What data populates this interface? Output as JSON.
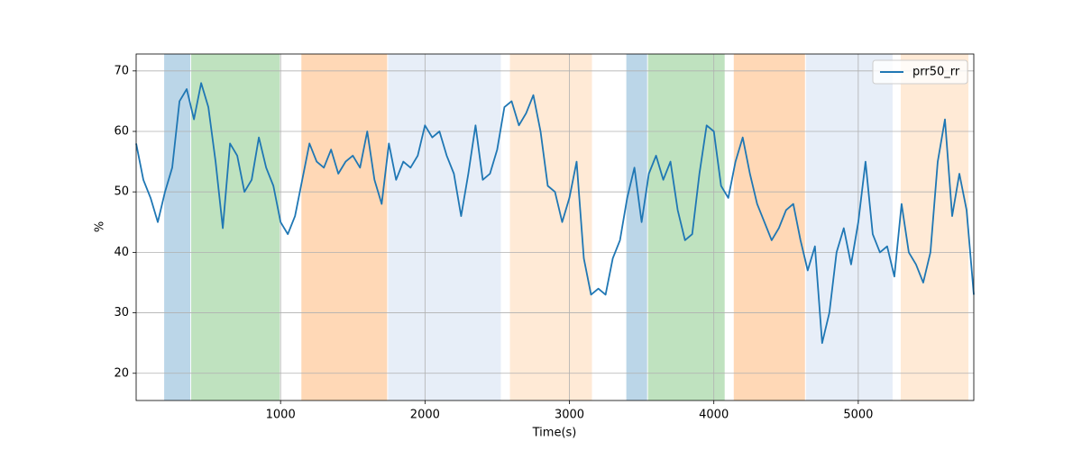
{
  "chart_data": {
    "type": "line",
    "xlabel": "Time(s)",
    "ylabel": "%",
    "x": [
      0,
      50,
      100,
      150,
      200,
      250,
      300,
      350,
      400,
      450,
      500,
      550,
      600,
      650,
      700,
      750,
      800,
      850,
      900,
      950,
      1000,
      1050,
      1100,
      1150,
      1200,
      1250,
      1300,
      1350,
      1400,
      1450,
      1500,
      1550,
      1600,
      1650,
      1700,
      1750,
      1800,
      1850,
      1900,
      1950,
      2000,
      2050,
      2100,
      2150,
      2200,
      2250,
      2300,
      2350,
      2400,
      2450,
      2500,
      2550,
      2600,
      2650,
      2700,
      2750,
      2800,
      2850,
      2900,
      2950,
      3000,
      3050,
      3100,
      3150,
      3200,
      3250,
      3300,
      3350,
      3400,
      3450,
      3500,
      3550,
      3600,
      3650,
      3700,
      3750,
      3800,
      3850,
      3900,
      3950,
      4000,
      4050,
      4100,
      4150,
      4200,
      4250,
      4300,
      4350,
      4400,
      4450,
      4500,
      4550,
      4600,
      4650,
      4700,
      4750,
      4800,
      4850,
      4900,
      4950,
      5000,
      5050,
      5100,
      5150,
      5200,
      5250,
      5300,
      5350,
      5400,
      5450,
      5500,
      5550,
      5600,
      5650,
      5700,
      5750,
      5800
    ],
    "series": [
      {
        "name": "prr50_rr",
        "color": "#1f77b4",
        "values": [
          58,
          52,
          49,
          45,
          50,
          54,
          65,
          67,
          62,
          68,
          64,
          55,
          44,
          58,
          56,
          50,
          52,
          59,
          54,
          51,
          45,
          43,
          46,
          52,
          58,
          55,
          54,
          57,
          53,
          55,
          56,
          54,
          60,
          52,
          48,
          58,
          52,
          55,
          54,
          56,
          61,
          59,
          60,
          56,
          53,
          46,
          53,
          61,
          52,
          53,
          57,
          64,
          65,
          61,
          63,
          66,
          60,
          51,
          50,
          45,
          49,
          55,
          39,
          33,
          34,
          33,
          39,
          42,
          49,
          54,
          45,
          53,
          56,
          52,
          55,
          47,
          42,
          43,
          53,
          61,
          60,
          51,
          49,
          55,
          59,
          53,
          48,
          45,
          42,
          44,
          47,
          48,
          42,
          37,
          41,
          25,
          30,
          40,
          44,
          38,
          45,
          55,
          43,
          40,
          41,
          36,
          48,
          40,
          38,
          35,
          40,
          55,
          62,
          46,
          53,
          47,
          33
        ]
      }
    ],
    "spans": [
      {
        "x0": 194,
        "x1": 375,
        "color": "#1f77b4"
      },
      {
        "x0": 381,
        "x1": 994,
        "color": "#2ca02c"
      },
      {
        "x0": 1144,
        "x1": 1738,
        "color": "#ff7f0e"
      },
      {
        "x0": 1744,
        "x1": 2525,
        "color": "#aec7e8"
      },
      {
        "x0": 2588,
        "x1": 3156,
        "color": "#ffbb78"
      },
      {
        "x0": 3394,
        "x1": 3538,
        "color": "#1f77b4"
      },
      {
        "x0": 3544,
        "x1": 4075,
        "color": "#2ca02c"
      },
      {
        "x0": 4138,
        "x1": 4631,
        "color": "#ff7f0e"
      },
      {
        "x0": 4638,
        "x1": 5238,
        "color": "#aec7e8"
      },
      {
        "x0": 5294,
        "x1": 5763,
        "color": "#ffbb78"
      }
    ],
    "xlim": [
      0,
      5800
    ],
    "ylim": [
      15.5,
      72.8
    ],
    "xticks": [
      1000,
      2000,
      3000,
      4000,
      5000
    ],
    "yticks": [
      20,
      30,
      40,
      50,
      60,
      70
    ],
    "grid": true,
    "legend": "upper right"
  }
}
